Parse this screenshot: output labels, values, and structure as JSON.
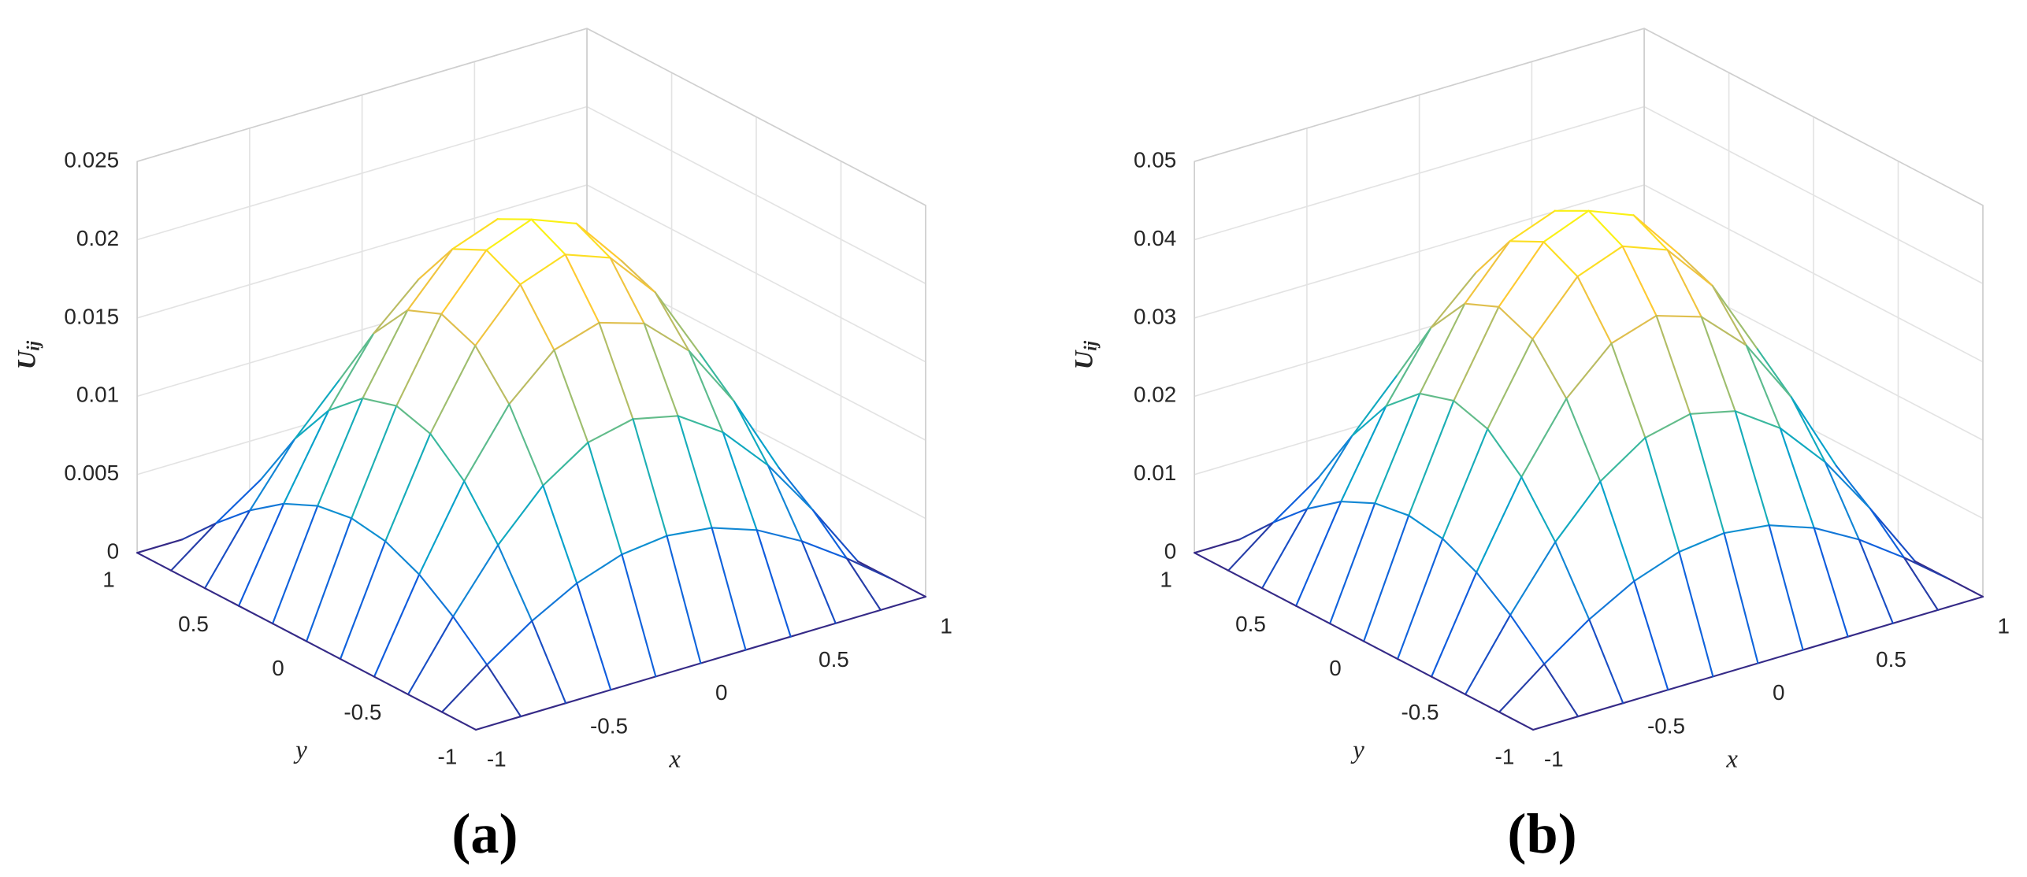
{
  "chart_data": [
    {
      "type": "mesh",
      "title": "(a)",
      "xlabel": "x",
      "ylabel": "y",
      "zlabel": {
        "text": "U",
        "subscript": "ij"
      },
      "colormap": "parula",
      "grid": true,
      "xlim": [
        -1,
        1
      ],
      "ylim": [
        -1,
        1
      ],
      "zlim": [
        0,
        0.025
      ],
      "xticks": [
        -1,
        -0.5,
        0,
        0.5,
        1
      ],
      "yticks": [
        -1,
        -0.5,
        0,
        0.5,
        1
      ],
      "zticks": [
        0,
        0.005,
        0.01,
        0.015,
        0.02,
        0.025
      ],
      "x": [
        -1,
        -0.8,
        -0.6,
        -0.4,
        -0.2,
        0,
        0.2,
        0.4,
        0.6,
        0.8,
        1
      ],
      "y": [
        -1,
        -0.8,
        -0.6,
        -0.4,
        -0.2,
        0,
        0.2,
        0.4,
        0.6,
        0.8,
        1
      ],
      "z": [
        [
          0,
          0,
          0,
          0,
          0,
          0,
          0,
          0,
          0,
          0,
          0
        ],
        [
          0,
          0.00217,
          0.00412,
          0.00568,
          0.00667,
          0.00701,
          0.00667,
          0.00568,
          0.00412,
          0.00217,
          0
        ],
        [
          0,
          0.00412,
          0.00784,
          0.01079,
          0.01269,
          0.01334,
          0.01269,
          0.01079,
          0.00784,
          0.00412,
          0
        ],
        [
          0,
          0.00568,
          0.01079,
          0.01486,
          0.01747,
          0.01836,
          0.01747,
          0.01486,
          0.01079,
          0.00568,
          0
        ],
        [
          0,
          0.00667,
          0.01269,
          0.01747,
          0.02053,
          0.02159,
          0.02053,
          0.01747,
          0.01269,
          0.00667,
          0
        ],
        [
          0,
          0.00701,
          0.01334,
          0.01836,
          0.02159,
          0.0227,
          0.02159,
          0.01836,
          0.01334,
          0.00701,
          0
        ],
        [
          0,
          0.00667,
          0.01269,
          0.01747,
          0.02053,
          0.02159,
          0.02053,
          0.01747,
          0.01269,
          0.00667,
          0
        ],
        [
          0,
          0.00568,
          0.01079,
          0.01486,
          0.01747,
          0.01836,
          0.01747,
          0.01486,
          0.01079,
          0.00568,
          0
        ],
        [
          0,
          0.00412,
          0.00784,
          0.01079,
          0.01269,
          0.01334,
          0.01269,
          0.01079,
          0.00784,
          0.00412,
          0
        ],
        [
          0,
          0.00217,
          0.00412,
          0.00568,
          0.00667,
          0.00701,
          0.00667,
          0.00568,
          0.00412,
          0.00217,
          0
        ],
        [
          0,
          0,
          0,
          0,
          0,
          0,
          0,
          0,
          0,
          0,
          0
        ]
      ]
    },
    {
      "type": "mesh",
      "title": "(b)",
      "xlabel": "x",
      "ylabel": "y",
      "zlabel": {
        "text": "U",
        "subscript": "ij"
      },
      "colormap": "parula",
      "grid": true,
      "xlim": [
        -1,
        1
      ],
      "ylim": [
        -1,
        1
      ],
      "zlim": [
        0,
        0.05
      ],
      "xticks": [
        -1,
        -0.5,
        0,
        0.5,
        1
      ],
      "yticks": [
        -1,
        -0.5,
        0,
        0.5,
        1
      ],
      "zticks": [
        0,
        0.01,
        0.02,
        0.03,
        0.04,
        0.05
      ],
      "x": [
        -1,
        -0.8,
        -0.6,
        -0.4,
        -0.2,
        0,
        0.2,
        0.4,
        0.6,
        0.8,
        1
      ],
      "y": [
        -1,
        -0.8,
        -0.6,
        -0.4,
        -0.2,
        0,
        0.2,
        0.4,
        0.6,
        0.8,
        1
      ],
      "z": [
        [
          0,
          0,
          0,
          0,
          0,
          0,
          0,
          0,
          0,
          0,
          0
        ],
        [
          0,
          0.00444,
          0.00844,
          0.01163,
          0.01367,
          0.01437,
          0.01367,
          0.01163,
          0.00844,
          0.00444,
          0
        ],
        [
          0,
          0.00844,
          0.01607,
          0.02211,
          0.02599,
          0.02733,
          0.02599,
          0.02211,
          0.01607,
          0.00844,
          0
        ],
        [
          0,
          0.01163,
          0.02211,
          0.03043,
          0.03578,
          0.03762,
          0.03578,
          0.03043,
          0.02211,
          0.01163,
          0
        ],
        [
          0,
          0.01367,
          0.02599,
          0.03578,
          0.04206,
          0.04423,
          0.04206,
          0.03578,
          0.02599,
          0.01367,
          0
        ],
        [
          0,
          0.01437,
          0.02733,
          0.03762,
          0.04423,
          0.0465,
          0.04423,
          0.03762,
          0.02733,
          0.01437,
          0
        ],
        [
          0,
          0.01367,
          0.02599,
          0.03578,
          0.04206,
          0.04423,
          0.04206,
          0.03578,
          0.02599,
          0.01367,
          0
        ],
        [
          0,
          0.01163,
          0.02211,
          0.03043,
          0.03578,
          0.03762,
          0.03578,
          0.03043,
          0.02211,
          0.01163,
          0
        ],
        [
          0,
          0.00844,
          0.01607,
          0.02211,
          0.02599,
          0.02733,
          0.02599,
          0.02211,
          0.01607,
          0.00844,
          0
        ],
        [
          0,
          0.00444,
          0.00844,
          0.01163,
          0.01367,
          0.01437,
          0.01367,
          0.01163,
          0.00844,
          0.00444,
          0
        ],
        [
          0,
          0,
          0,
          0,
          0,
          0,
          0,
          0,
          0,
          0,
          0
        ]
      ]
    }
  ]
}
